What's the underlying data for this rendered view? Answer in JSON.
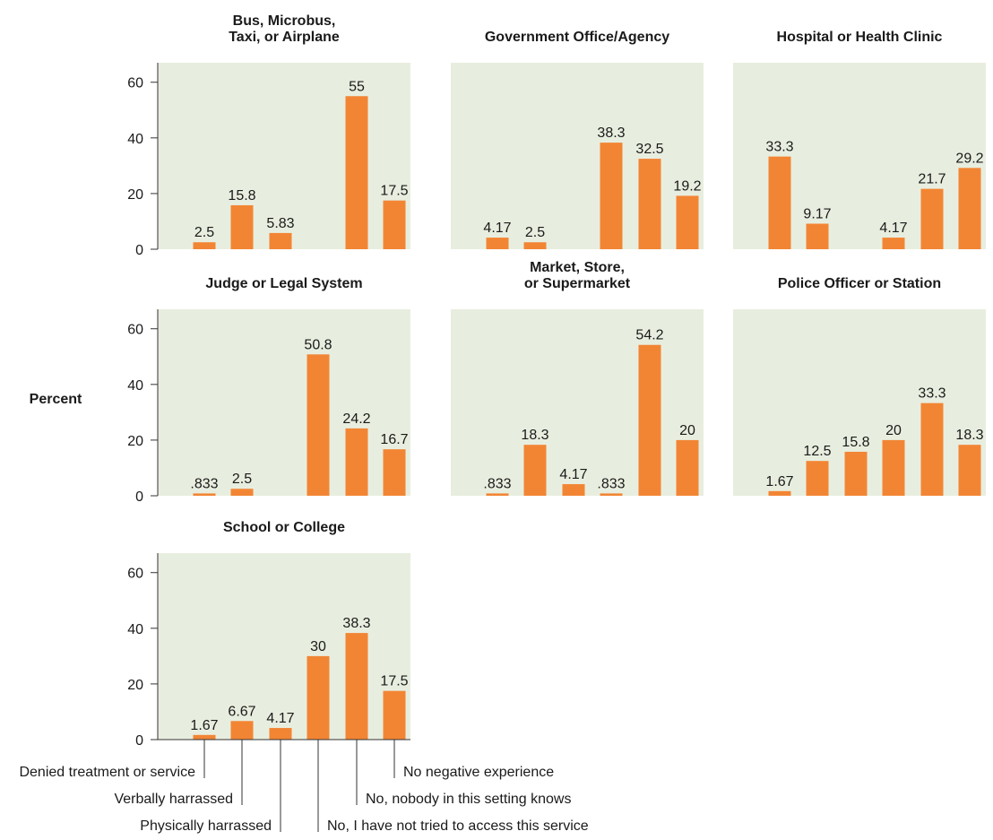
{
  "colors": {
    "bar": "#f28534",
    "panel_bg": "#e8eedf",
    "axis": "#333333",
    "text": "#1a1a1a"
  },
  "chart_data": {
    "type": "bar",
    "ylabel": "Percent",
    "ylim": [
      0,
      67
    ],
    "yticks": [
      0,
      20,
      40,
      60
    ],
    "grid": false,
    "categories": [
      "Denied treatment or service",
      "Verbally harrassed",
      "Physically harrassed",
      "No, I have not tried to access this service",
      "No, nobody in this setting knows",
      "No negative experience"
    ],
    "panels": [
      {
        "title_lines": [
          "Bus, Microbus,",
          "Taxi, or Airplane"
        ],
        "values": [
          2.5,
          15.8,
          5.83,
          null,
          55,
          17.5
        ],
        "labels": [
          "2.5",
          "15.8",
          "5.83",
          "",
          "55",
          "17.5"
        ]
      },
      {
        "title_lines": [
          "Government Office/Agency"
        ],
        "values": [
          4.17,
          2.5,
          null,
          38.3,
          32.5,
          19.2
        ],
        "labels": [
          "4.17",
          "2.5",
          "",
          "38.3",
          "32.5",
          "19.2"
        ]
      },
      {
        "title_lines": [
          "Hospital or Health Clinic"
        ],
        "values": [
          33.3,
          9.17,
          null,
          4.17,
          21.7,
          29.2
        ],
        "labels": [
          "33.3",
          "9.17",
          "",
          "4.17",
          "21.7",
          "29.2"
        ]
      },
      {
        "title_lines": [
          "Judge or Legal System"
        ],
        "values": [
          0.833,
          2.5,
          null,
          50.8,
          24.2,
          16.7
        ],
        "labels": [
          ".833",
          "2.5",
          "",
          "50.8",
          "24.2",
          "16.7"
        ]
      },
      {
        "title_lines": [
          "Market, Store,",
          "or Supermarket"
        ],
        "values": [
          0.833,
          18.3,
          4.17,
          0.833,
          54.2,
          20
        ],
        "labels": [
          ".833",
          "18.3",
          "4.17",
          ".833",
          "54.2",
          "20"
        ]
      },
      {
        "title_lines": [
          "Police Officer or Station"
        ],
        "values": [
          1.67,
          12.5,
          15.8,
          20,
          33.3,
          18.3
        ],
        "labels": [
          "1.67",
          "12.5",
          "15.8",
          "20",
          "33.3",
          "18.3"
        ]
      },
      {
        "title_lines": [
          "School or College"
        ],
        "values": [
          1.67,
          6.67,
          4.17,
          30,
          38.3,
          17.5
        ],
        "labels": [
          "1.67",
          "6.67",
          "4.17",
          "30",
          "38.3",
          "17.5"
        ]
      }
    ]
  }
}
